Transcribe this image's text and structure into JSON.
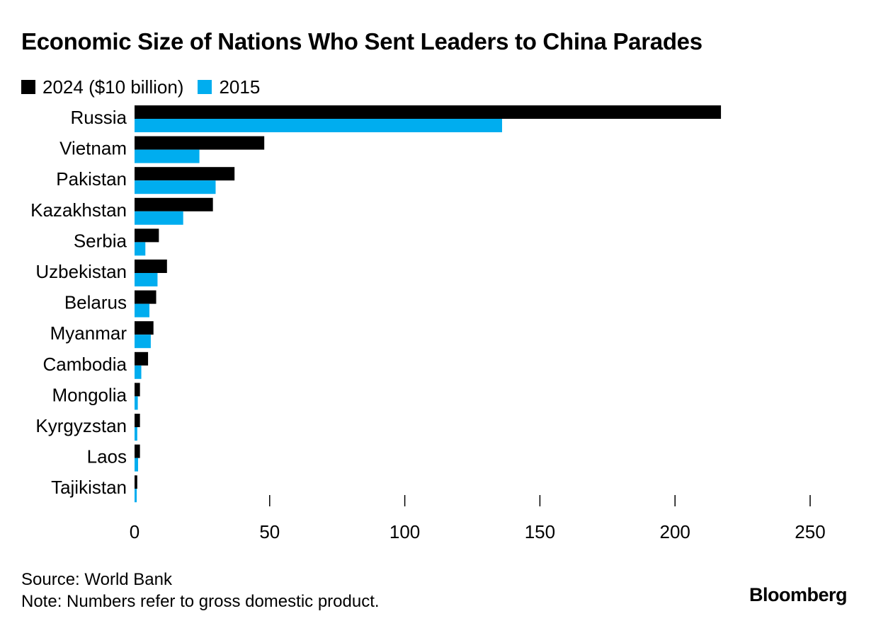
{
  "chart_data": {
    "type": "bar",
    "orientation": "horizontal",
    "title": "Economic Size of Nations Who Sent Leaders to China Parades",
    "categories": [
      "Russia",
      "Vietnam",
      "Pakistan",
      "Kazakhstan",
      "Serbia",
      "Uzbekistan",
      "Belarus",
      "Myanmar",
      "Cambodia",
      "Mongolia",
      "Kyrgyzstan",
      "Laos",
      "Tajikistan"
    ],
    "series": [
      {
        "name": "2024 ($10 billion)",
        "color": "#000000",
        "values": [
          217,
          48,
          37,
          29,
          9,
          12,
          8,
          7,
          5,
          2,
          2,
          2,
          1
        ]
      },
      {
        "name": "2015",
        "color": "#00adef",
        "values": [
          136,
          24,
          30,
          18,
          4,
          8.5,
          5.5,
          6,
          2.5,
          1.2,
          1,
          1.3,
          0.8
        ]
      }
    ],
    "xlim": [
      0,
      250
    ],
    "xticks": [
      0,
      50,
      100,
      150,
      200,
      250
    ],
    "legend_position": "top-left",
    "grid": false
  },
  "footer": {
    "source": "Source: World Bank",
    "note": "Note: Numbers refer to gross domestic product."
  },
  "brand": "Bloomberg"
}
